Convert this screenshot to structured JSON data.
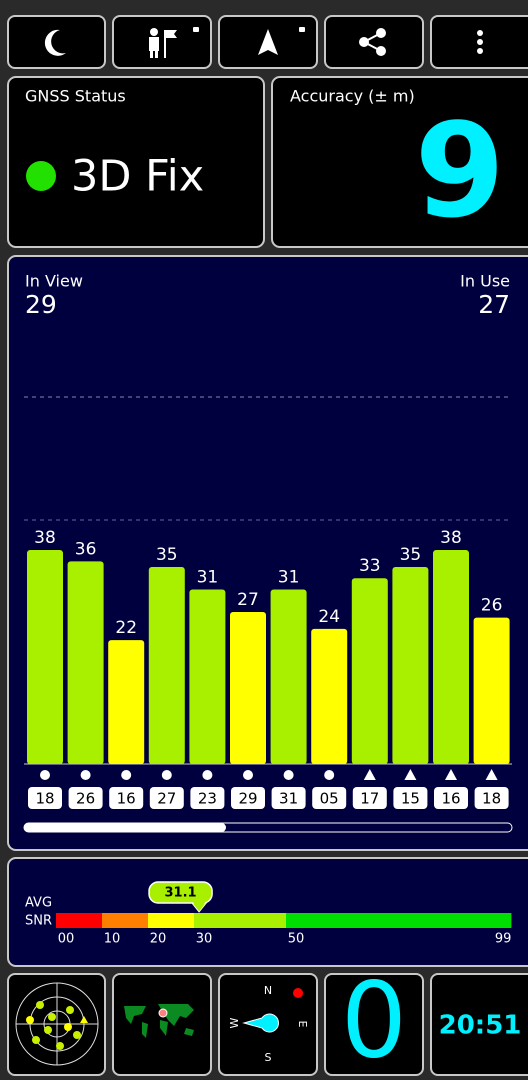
{
  "status": {
    "label": "GNSS Status",
    "fix": "3D Fix"
  },
  "accuracy": {
    "label": "Accuracy (± m)",
    "value": 9
  },
  "satellites": {
    "in_view_label": "In View",
    "in_view": 29,
    "in_use_label": "In Use",
    "in_use": 27,
    "bars": [
      {
        "snr": 38,
        "id": "18",
        "marker": "circle",
        "color": "#a8f000"
      },
      {
        "snr": 36,
        "id": "26",
        "marker": "circle",
        "color": "#a8f000"
      },
      {
        "snr": 22,
        "id": "16",
        "marker": "circle",
        "color": "#ffff00"
      },
      {
        "snr": 35,
        "id": "27",
        "marker": "circle",
        "color": "#a8f000"
      },
      {
        "snr": 31,
        "id": "23",
        "marker": "circle",
        "color": "#a8f000"
      },
      {
        "snr": 27,
        "id": "29",
        "marker": "circle",
        "color": "#ffff00"
      },
      {
        "snr": 31,
        "id": "31",
        "marker": "circle",
        "color": "#a8f000"
      },
      {
        "snr": 24,
        "id": "05",
        "marker": "circle",
        "color": "#ffff00"
      },
      {
        "snr": 33,
        "id": "17",
        "marker": "triangle",
        "color": "#a8f000"
      },
      {
        "snr": 35,
        "id": "15",
        "marker": "triangle",
        "color": "#a8f000"
      },
      {
        "snr": 38,
        "id": "16",
        "marker": "triangle",
        "color": "#a8f000"
      },
      {
        "snr": 26,
        "id": "18",
        "marker": "triangle",
        "color": "#ffff00"
      }
    ]
  },
  "avg_snr": {
    "label_top": "AVG",
    "label_bottom": "SNR",
    "value": 31.1,
    "ticks": [
      {
        "value": 0,
        "label": "00"
      },
      10,
      20,
      30,
      50,
      99
    ],
    "colors": [
      "#ff0000",
      "#ff7f00",
      "#ffff00",
      "#a8f000",
      "#00e000"
    ]
  },
  "compass": {
    "north": "N",
    "east": "E",
    "south": "S",
    "west": "W"
  },
  "speed": "0",
  "clock": "20:51"
}
